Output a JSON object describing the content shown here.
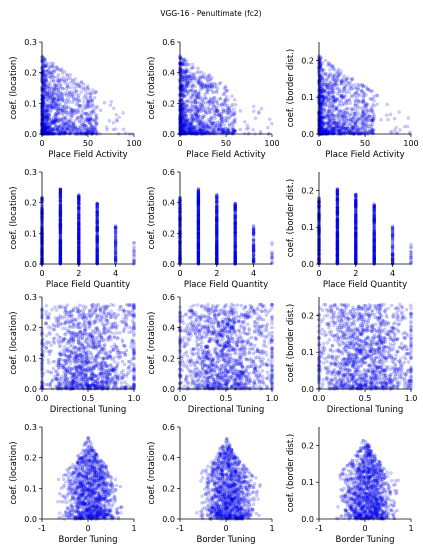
{
  "figure": {
    "title": "VGG-16 - Penultimate (fc2)"
  },
  "chart_data": [
    {
      "type": "scatter",
      "xlabel": "Place Field Activity",
      "ylabel": "coef. (location)",
      "xlim": [
        0,
        100
      ],
      "ylim": [
        0,
        0.3
      ],
      "xticks": [
        0,
        50,
        100
      ],
      "yticks": [
        0.0,
        0.1,
        0.2,
        0.3
      ],
      "color": "#0000ff",
      "distribution": "activity",
      "n_points": 1200
    },
    {
      "type": "scatter",
      "xlabel": "Place Field Activity",
      "ylabel": "coef. (rotation)",
      "xlim": [
        0,
        100
      ],
      "ylim": [
        0,
        0.6
      ],
      "xticks": [
        0,
        50,
        100
      ],
      "yticks": [
        0.0,
        0.2,
        0.4,
        0.6
      ],
      "color": "#0000ff",
      "distribution": "activity",
      "n_points": 1200
    },
    {
      "type": "scatter",
      "xlabel": "Place Field Activity",
      "ylabel": "coef. (border dist.)",
      "xlim": [
        0,
        100
      ],
      "ylim": [
        0,
        0.25
      ],
      "xticks": [
        0,
        50,
        100
      ],
      "yticks": [
        0.0,
        0.1,
        0.2
      ],
      "color": "#0000ff",
      "distribution": "activity",
      "n_points": 1200
    },
    {
      "type": "scatter",
      "xlabel": "Place Field Quantity",
      "ylabel": "coef. (location)",
      "xlim": [
        0,
        5
      ],
      "ylim": [
        0,
        0.3
      ],
      "xticks": [
        0,
        2,
        4
      ],
      "yticks": [
        0.0,
        0.1,
        0.2,
        0.3
      ],
      "color": "#0000ff",
      "distribution": "quantity",
      "n_points": 1200
    },
    {
      "type": "scatter",
      "xlabel": "Place Field Quantity",
      "ylabel": "coef. (rotation)",
      "xlim": [
        0,
        5
      ],
      "ylim": [
        0,
        0.6
      ],
      "xticks": [
        0,
        2,
        4
      ],
      "yticks": [
        0.0,
        0.2,
        0.4,
        0.6
      ],
      "color": "#0000ff",
      "distribution": "quantity",
      "n_points": 1200
    },
    {
      "type": "scatter",
      "xlabel": "Place Field Quantity",
      "ylabel": "coef. (border dist.)",
      "xlim": [
        0,
        5
      ],
      "ylim": [
        0,
        0.25
      ],
      "xticks": [
        0,
        2,
        4
      ],
      "yticks": [
        0.0,
        0.1,
        0.2
      ],
      "color": "#0000ff",
      "distribution": "quantity",
      "n_points": 1200
    },
    {
      "type": "scatter",
      "xlabel": "Directional Tuning",
      "ylabel": "coef. (location)",
      "xlim": [
        0,
        1
      ],
      "ylim": [
        0,
        0.3
      ],
      "xticks": [
        0.0,
        0.5,
        1.0
      ],
      "yticks": [
        0.0,
        0.1,
        0.2,
        0.3
      ],
      "color": "#0000ff",
      "distribution": "directional",
      "n_points": 1400
    },
    {
      "type": "scatter",
      "xlabel": "Directional Tuning",
      "ylabel": "coef. (rotation)",
      "xlim": [
        0,
        1
      ],
      "ylim": [
        0,
        0.6
      ],
      "xticks": [
        0.0,
        0.5,
        1.0
      ],
      "yticks": [
        0.0,
        0.2,
        0.4,
        0.6
      ],
      "color": "#0000ff",
      "distribution": "directional",
      "n_points": 1400
    },
    {
      "type": "scatter",
      "xlabel": "Directional Tuning",
      "ylabel": "coef. (border dist.)",
      "xlim": [
        0,
        1
      ],
      "ylim": [
        0,
        0.25
      ],
      "xticks": [
        0.0,
        0.5,
        1.0
      ],
      "yticks": [
        0.0,
        0.1,
        0.2
      ],
      "color": "#0000ff",
      "distribution": "directional",
      "n_points": 1400
    },
    {
      "type": "scatter",
      "xlabel": "Border Tuning",
      "ylabel": "coef. (location)",
      "xlim": [
        -1,
        1
      ],
      "ylim": [
        0,
        0.3
      ],
      "xticks": [
        -1,
        0,
        1
      ],
      "yticks": [
        0.0,
        0.1,
        0.2,
        0.3
      ],
      "color": "#0000ff",
      "distribution": "border",
      "n_points": 1200
    },
    {
      "type": "scatter",
      "xlabel": "Border Tuning",
      "ylabel": "coef. (rotation)",
      "xlim": [
        -1,
        1
      ],
      "ylim": [
        0,
        0.6
      ],
      "xticks": [
        -1,
        0,
        1
      ],
      "yticks": [
        0.0,
        0.2,
        0.4,
        0.6
      ],
      "color": "#0000ff",
      "distribution": "border",
      "n_points": 1200
    },
    {
      "type": "scatter",
      "xlabel": "Border Tuning",
      "ylabel": "coef. (border dist.)",
      "xlim": [
        -1,
        1
      ],
      "ylim": [
        0,
        0.25
      ],
      "xticks": [
        -1,
        0,
        1
      ],
      "yticks": [
        0.0,
        0.1,
        0.2
      ],
      "color": "#0000ff",
      "distribution": "border",
      "n_points": 1200
    }
  ]
}
